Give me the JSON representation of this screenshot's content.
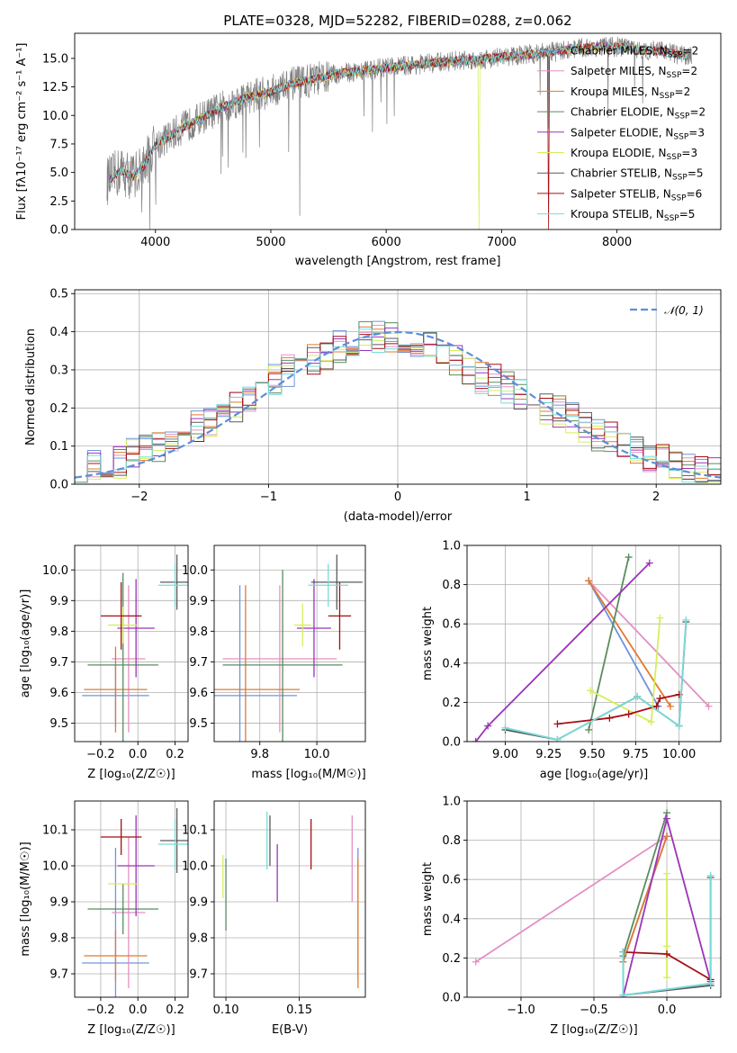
{
  "colors": {
    "Chabrier MILES": "#6f93dd",
    "Salpeter MILES": "#e390c3",
    "Kroupa MILES": "#e07b2e",
    "Chabrier ELODIE": "#5b8c5e",
    "Salpeter ELODIE": "#9b34b8",
    "Kroupa ELODIE": "#d6ee5b",
    "Chabrier STELIB": "#5a5a5a",
    "Salpeter STELIB": "#a80f12",
    "Kroupa STELIB": "#79dbd8",
    "data": "#808080",
    "gauss": "#5b8fd9"
  },
  "chart_data": [
    {
      "id": "spectrum",
      "type": "line",
      "title": "PLATE=0328, MJD=52282, FIBERID=0288, z=0.062",
      "xlabel": "wavelength [Angstrom, rest frame]",
      "ylabel": "Flux [f_λ10^-17 erg cm^-2 s^-1 A^-1]",
      "xlim": [
        3300,
        8900
      ],
      "ylim": [
        0,
        17.2
      ],
      "xticks": [
        4000,
        5000,
        6000,
        7000,
        8000
      ],
      "yticks": [
        0.0,
        2.5,
        5.0,
        7.5,
        10.0,
        12.5,
        15.0
      ],
      "grid": false,
      "legend_position": "right",
      "legend": [
        {
          "model": "Chabrier MILES",
          "nssp": "2"
        },
        {
          "model": "Salpeter MILES",
          "nssp": "2"
        },
        {
          "model": "Kroupa MILES",
          "nssp": "2"
        },
        {
          "model": "Chabrier ELODIE",
          "nssp": "2"
        },
        {
          "model": "Salpeter ELODIE",
          "nssp": "3"
        },
        {
          "model": "Kroupa ELODIE",
          "nssp": "3"
        },
        {
          "model": "Chabrier STELIB",
          "nssp": "5"
        },
        {
          "model": "Salpeter STELIB",
          "nssp": "6"
        },
        {
          "model": "Kroupa STELIB",
          "nssp": "5"
        }
      ],
      "continuum": {
        "x": [
          3600,
          3700,
          3800,
          3900,
          4000,
          4100,
          4200,
          4400,
          4600,
          4800,
          5000,
          5200,
          5400,
          5600,
          5800,
          6000,
          6200,
          6400,
          6600,
          6800,
          7000,
          7200,
          7400,
          7600,
          7800,
          8000,
          8200,
          8400,
          8600
        ],
        "y": [
          4.3,
          5.2,
          4.6,
          5.6,
          7.4,
          8.0,
          8.7,
          9.8,
          10.8,
          11.6,
          12.1,
          12.8,
          13.2,
          13.7,
          13.9,
          14.2,
          14.4,
          14.6,
          14.8,
          14.9,
          15.1,
          15.3,
          15.5,
          15.8,
          16.0,
          16.0,
          15.8,
          15.6,
          15.2
        ]
      },
      "spikes": [
        {
          "x": 6800,
          "y": 0.0,
          "series": "Kroupa ELODIE"
        },
        {
          "x": 7410,
          "y": 0.0,
          "series": "Salpeter STELIB"
        },
        {
          "x": 5250,
          "y": 1.2,
          "series": "data"
        },
        {
          "x": 3950,
          "y": 0.0,
          "series": "data"
        },
        {
          "x": 3880,
          "y": 1.5,
          "series": "data"
        }
      ]
    },
    {
      "id": "residuals",
      "type": "step",
      "xlabel": "(data-model)/error",
      "ylabel": "Normed distribution",
      "xlim": [
        -2.5,
        2.5
      ],
      "ylim": [
        0,
        0.51
      ],
      "xticks": [
        -2,
        -1,
        0,
        1,
        2
      ],
      "yticks": [
        0.0,
        0.1,
        0.2,
        0.3,
        0.4,
        0.5
      ],
      "grid": true,
      "legend": "𝒩(0, 1)",
      "bins": [
        -2.5,
        -2.4,
        -2.3,
        -2.2,
        -2.1,
        -2.0,
        -1.9,
        -1.8,
        -1.7,
        -1.6,
        -1.5,
        -1.4,
        -1.3,
        -1.2,
        -1.1,
        -1.0,
        -0.9,
        -0.8,
        -0.7,
        -0.6,
        -0.5,
        -0.4,
        -0.3,
        -0.2,
        -0.1,
        0.0,
        0.1,
        0.2,
        0.3,
        0.4,
        0.5,
        0.6,
        0.7,
        0.8,
        0.9,
        1.0,
        1.1,
        1.2,
        1.3,
        1.4,
        1.5,
        1.6,
        1.7,
        1.8,
        1.9,
        2.0,
        2.1,
        2.2,
        2.3,
        2.4,
        2.5
      ],
      "base_density": [
        0.04,
        0.045,
        0.05,
        0.06,
        0.075,
        0.09,
        0.1,
        0.115,
        0.13,
        0.15,
        0.17,
        0.19,
        0.2,
        0.22,
        0.24,
        0.27,
        0.3,
        0.31,
        0.33,
        0.34,
        0.36,
        0.38,
        0.39,
        0.39,
        0.38,
        0.37,
        0.37,
        0.36,
        0.35,
        0.33,
        0.3,
        0.28,
        0.27,
        0.25,
        0.24,
        0.22,
        0.2,
        0.19,
        0.17,
        0.15,
        0.13,
        0.12,
        0.1,
        0.09,
        0.07,
        0.06,
        0.05,
        0.04,
        0.035,
        0.03
      ],
      "gaussian": {
        "mu": 0,
        "sigma": 1
      }
    },
    {
      "id": "age_vs_Z",
      "type": "errorbar",
      "xlabel": "Z [log10(Z/Z☉)]",
      "ylabel": "age  [log10(age/yr)]",
      "xlim": [
        -0.34,
        0.27
      ],
      "ylim": [
        9.44,
        10.08
      ],
      "xticks": [
        -0.2,
        0.0,
        0.2
      ],
      "yticks": [
        9.5,
        9.6,
        9.7,
        9.8,
        9.9,
        10.0
      ],
      "points": [
        {
          "series": "Chabrier MILES",
          "x": -0.12,
          "xerr": 0.18,
          "y": 9.59,
          "yerr": 0.1
        },
        {
          "series": "Salpeter MILES",
          "x": -0.05,
          "xerr": 0.09,
          "y": 9.71,
          "yerr": 0.24
        },
        {
          "series": "Kroupa MILES",
          "x": -0.12,
          "xerr": 0.17,
          "y": 9.61,
          "yerr": 0.14
        },
        {
          "series": "Chabrier ELODIE",
          "x": -0.08,
          "xerr": 0.19,
          "y": 9.69,
          "yerr": 0.3
        },
        {
          "series": "Salpeter ELODIE",
          "x": -0.01,
          "xerr": 0.1,
          "y": 9.81,
          "yerr": 0.16
        },
        {
          "series": "Kroupa ELODIE",
          "x": -0.08,
          "xerr": 0.08,
          "y": 9.82,
          "yerr": 0.06
        },
        {
          "series": "Chabrier STELIB",
          "x": 0.21,
          "xerr": 0.09,
          "y": 9.96,
          "yerr": 0.09
        },
        {
          "series": "Salpeter STELIB",
          "x": -0.09,
          "xerr": 0.11,
          "y": 9.85,
          "yerr": 0.11
        },
        {
          "series": "Kroupa STELIB",
          "x": 0.2,
          "xerr": 0.09,
          "y": 9.95,
          "yerr": 0.07
        }
      ]
    },
    {
      "id": "age_vs_mass",
      "type": "errorbar",
      "xlabel": "mass [log10(M/M☉)]",
      "ylabel": "",
      "xlim": [
        9.64,
        10.17
      ],
      "ylim": [
        9.44,
        10.08
      ],
      "xticks": [
        9.8,
        10.0
      ],
      "yticks": [
        9.5,
        9.6,
        9.7,
        9.8,
        9.9,
        10.0
      ],
      "points": [
        {
          "series": "Chabrier MILES",
          "x": 9.73,
          "xerr": 0.2,
          "y": 9.59,
          "yerr": 0.36
        },
        {
          "series": "Salpeter MILES",
          "x": 9.87,
          "xerr": 0.2,
          "y": 9.71,
          "yerr": 0.24
        },
        {
          "series": "Kroupa MILES",
          "x": 9.75,
          "xerr": 0.19,
          "y": 9.61,
          "yerr": 0.34
        },
        {
          "series": "Chabrier ELODIE",
          "x": 9.88,
          "xerr": 0.21,
          "y": 9.69,
          "yerr": 0.31
        },
        {
          "series": "Salpeter ELODIE",
          "x": 9.99,
          "xerr": 0.06,
          "y": 9.81,
          "yerr": 0.16
        },
        {
          "series": "Kroupa ELODIE",
          "x": 9.95,
          "xerr": 0.03,
          "y": 9.82,
          "yerr": 0.07
        },
        {
          "series": "Chabrier STELIB",
          "x": 10.07,
          "xerr": 0.09,
          "y": 9.96,
          "yerr": 0.09
        },
        {
          "series": "Salpeter STELIB",
          "x": 10.08,
          "xerr": 0.04,
          "y": 9.85,
          "yerr": 0.11
        },
        {
          "series": "Kroupa STELIB",
          "x": 10.04,
          "xerr": 0.07,
          "y": 9.95,
          "yerr": 0.07
        }
      ]
    },
    {
      "id": "weight_vs_age",
      "type": "line",
      "xlabel": "age  [log10(age/yr)]",
      "ylabel": "mass weight",
      "xlim": [
        8.78,
        10.24
      ],
      "ylim": [
        0,
        1.0
      ],
      "xticks": [
        9.0,
        9.25,
        9.5,
        9.75,
        10.0
      ],
      "yticks": [
        0.0,
        0.2,
        0.4,
        0.6,
        0.8,
        1.0
      ],
      "grid": true,
      "series": [
        {
          "series": "Chabrier MILES",
          "x": [
            9.48,
            9.88
          ],
          "y": [
            0.82,
            0.18
          ]
        },
        {
          "series": "Salpeter MILES",
          "x": [
            9.48,
            10.17
          ],
          "y": [
            0.82,
            0.18
          ]
        },
        {
          "series": "Kroupa MILES",
          "x": [
            9.48,
            9.95
          ],
          "y": [
            0.82,
            0.18
          ]
        },
        {
          "series": "Chabrier ELODIE",
          "x": [
            9.48,
            9.71
          ],
          "y": [
            0.06,
            0.94
          ]
        },
        {
          "series": "Salpeter ELODIE",
          "x": [
            8.83,
            8.9,
            9.83
          ],
          "y": [
            0.0,
            0.08,
            0.91
          ]
        },
        {
          "series": "Kroupa ELODIE",
          "x": [
            9.49,
            9.84,
            9.89
          ],
          "y": [
            0.26,
            0.1,
            0.63
          ]
        },
        {
          "series": "Chabrier STELIB",
          "x": [
            9.0,
            9.3,
            9.76,
            10.0,
            10.04
          ],
          "y": [
            0.06,
            0.01,
            0.23,
            0.08,
            0.61
          ]
        },
        {
          "series": "Salpeter STELIB",
          "x": [
            9.3,
            9.6,
            9.71,
            9.87,
            9.89,
            10.0
          ],
          "y": [
            0.09,
            0.12,
            0.14,
            0.18,
            0.22,
            0.24
          ]
        },
        {
          "series": "Kroupa STELIB",
          "x": [
            9.0,
            9.3,
            9.76,
            10.0,
            10.04
          ],
          "y": [
            0.07,
            0.01,
            0.23,
            0.08,
            0.62
          ]
        }
      ]
    },
    {
      "id": "mass_vs_Z",
      "type": "errorbar",
      "xlabel": "Z [log10(Z/Z☉)]",
      "ylabel": "mass [log10(M/M☉)]",
      "xlim": [
        -0.34,
        0.27
      ],
      "ylim": [
        9.635,
        10.18
      ],
      "xticks": [
        -0.2,
        0.0,
        0.2
      ],
      "yticks": [
        9.7,
        9.8,
        9.9,
        10.0,
        10.1
      ],
      "points": [
        {
          "series": "Chabrier MILES",
          "x": -0.12,
          "xerr": 0.18,
          "y": 9.73,
          "yerr": 0.32
        },
        {
          "series": "Salpeter MILES",
          "x": -0.05,
          "xerr": 0.09,
          "y": 9.87,
          "yerr": 0.21
        },
        {
          "series": "Kroupa MILES",
          "x": -0.12,
          "xerr": 0.17,
          "y": 9.75,
          "yerr": 0.07
        },
        {
          "series": "Chabrier ELODIE",
          "x": -0.08,
          "xerr": 0.19,
          "y": 9.88,
          "yerr": 0.07
        },
        {
          "series": "Salpeter ELODIE",
          "x": -0.01,
          "xerr": 0.1,
          "y": 10.0,
          "yerr": 0.14
        },
        {
          "series": "Kroupa ELODIE",
          "x": -0.08,
          "xerr": 0.08,
          "y": 9.95,
          "yerr": 0.0
        },
        {
          "series": "Chabrier STELIB",
          "x": 0.21,
          "xerr": 0.09,
          "y": 10.07,
          "yerr": 0.09
        },
        {
          "series": "Salpeter STELIB",
          "x": -0.09,
          "xerr": 0.11,
          "y": 10.08,
          "yerr": 0.05
        },
        {
          "series": "Kroupa STELIB",
          "x": 0.2,
          "xerr": 0.09,
          "y": 10.06,
          "yerr": 0.07
        }
      ]
    },
    {
      "id": "mass_vs_ebv",
      "type": "errorbar",
      "xlabel": "E(B-V)",
      "ylabel": "",
      "xlim": [
        0.092,
        0.195
      ],
      "ylim": [
        9.635,
        10.18
      ],
      "xticks": [
        0.1,
        0.15
      ],
      "yticks": [
        9.7,
        9.8,
        9.9,
        10.0,
        10.1
      ],
      "points": [
        {
          "series": "Chabrier MILES",
          "x": 0.19,
          "y": 9.87,
          "yerr": 0.18
        },
        {
          "series": "Salpeter MILES",
          "x": 0.186,
          "y": 10.02,
          "yerr": 0.12
        },
        {
          "series": "Kroupa MILES",
          "x": 0.19,
          "y": 9.84,
          "yerr": 0.18
        },
        {
          "series": "Chabrier ELODIE",
          "x": 0.1,
          "y": 9.92,
          "yerr": 0.1
        },
        {
          "series": "Salpeter ELODIE",
          "x": 0.135,
          "y": 9.98,
          "yerr": 0.08
        },
        {
          "series": "Kroupa ELODIE",
          "x": 0.098,
          "y": 9.97,
          "yerr": 0.06
        },
        {
          "series": "Chabrier STELIB",
          "x": 0.13,
          "y": 10.07,
          "yerr": 0.07
        },
        {
          "series": "Salpeter STELIB",
          "x": 0.158,
          "y": 10.06,
          "yerr": 0.07
        },
        {
          "series": "Kroupa STELIB",
          "x": 0.128,
          "y": 10.07,
          "yerr": 0.08
        }
      ]
    },
    {
      "id": "weight_vs_Z",
      "type": "line",
      "xlabel": "Z [log10(Z/Z☉)]",
      "ylabel": "mass weight",
      "xlim": [
        -1.37,
        0.37
      ],
      "ylim": [
        0,
        1.0
      ],
      "xticks": [
        -1.0,
        -0.5,
        0.0
      ],
      "yticks": [
        0.0,
        0.2,
        0.4,
        0.6,
        0.8,
        1.0
      ],
      "grid": true,
      "series": [
        {
          "series": "Chabrier MILES",
          "x": [
            -0.3,
            0.0
          ],
          "y": [
            0.18,
            0.82
          ]
        },
        {
          "series": "Salpeter MILES",
          "x": [
            -1.31,
            0.0
          ],
          "y": [
            0.18,
            0.82
          ]
        },
        {
          "series": "Kroupa MILES",
          "x": [
            -0.3,
            0.0
          ],
          "y": [
            0.18,
            0.82
          ]
        },
        {
          "series": "Chabrier ELODIE",
          "x": [
            -0.3,
            0.0
          ],
          "y": [
            0.21,
            0.94
          ]
        },
        {
          "series": "Salpeter ELODIE",
          "x": [
            -0.3,
            0.0,
            0.3
          ],
          "y": [
            0.0,
            0.91,
            0.08
          ]
        },
        {
          "series": "Kroupa ELODIE",
          "x": [
            0.0,
            0.0,
            0.0
          ],
          "y": [
            0.1,
            0.26,
            0.63
          ]
        },
        {
          "series": "Chabrier STELIB",
          "x": [
            -0.3,
            -0.3,
            0.3,
            0.3
          ],
          "y": [
            0.23,
            0.01,
            0.06,
            0.61
          ]
        },
        {
          "series": "Salpeter STELIB",
          "x": [
            -0.3,
            0.0,
            0.3
          ],
          "y": [
            0.23,
            0.22,
            0.09
          ]
        },
        {
          "series": "Kroupa STELIB",
          "x": [
            -0.3,
            -0.3,
            0.3,
            0.3
          ],
          "y": [
            0.23,
            0.01,
            0.07,
            0.62
          ]
        }
      ]
    }
  ]
}
